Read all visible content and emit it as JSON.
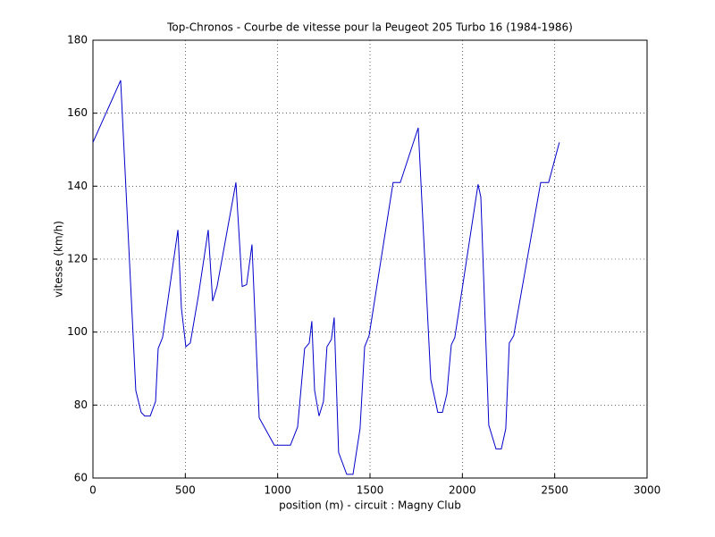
{
  "chart_data": {
    "type": "line",
    "title": "Top-Chronos - Courbe de vitesse pour la Peugeot 205 Turbo 16 (1984-1986)",
    "xlabel": "position (m) - circuit : Magny Club",
    "ylabel": "vitesse (km/h)",
    "x": [
      0,
      150,
      232,
      261,
      280,
      310,
      339,
      353,
      377,
      460,
      479,
      503,
      527,
      571,
      624,
      648,
      672,
      774,
      808,
      832,
      861,
      900,
      982,
      1006,
      1069,
      1108,
      1146,
      1171,
      1185,
      1200,
      1224,
      1248,
      1267,
      1291,
      1306,
      1330,
      1374,
      1408,
      1446,
      1471,
      1495,
      1625,
      1664,
      1761,
      1829,
      1867,
      1892,
      1916,
      1940,
      1959,
      2085,
      2100,
      2143,
      2182,
      2211,
      2235,
      2254,
      2278,
      2424,
      2467,
      2525
    ],
    "series": [
      {
        "name": "vitesse",
        "color": "#0000cc",
        "values": [
          152,
          169,
          84,
          78,
          77,
          77,
          81,
          95.5,
          98.5,
          128,
          106.5,
          96,
          97,
          110,
          128,
          108.5,
          112.5,
          141,
          112.5,
          113,
          124,
          76.5,
          69,
          69,
          69,
          74,
          95.5,
          97,
          103,
          84,
          77,
          81,
          96,
          98,
          104,
          67,
          61,
          61,
          73.5,
          96,
          99,
          141,
          141,
          156,
          87,
          78,
          78,
          83,
          96.5,
          98.5,
          140.5,
          137,
          74.5,
          68,
          68,
          73.5,
          97,
          99,
          141,
          141,
          152
        ]
      }
    ],
    "xlim": [
      0,
      3000
    ],
    "xticks": [
      0,
      500,
      1000,
      1500,
      2000,
      2500,
      3000
    ],
    "ylim": [
      60,
      180
    ],
    "yticks": [
      60,
      80,
      100,
      120,
      140,
      160,
      180
    ],
    "grid": true
  }
}
